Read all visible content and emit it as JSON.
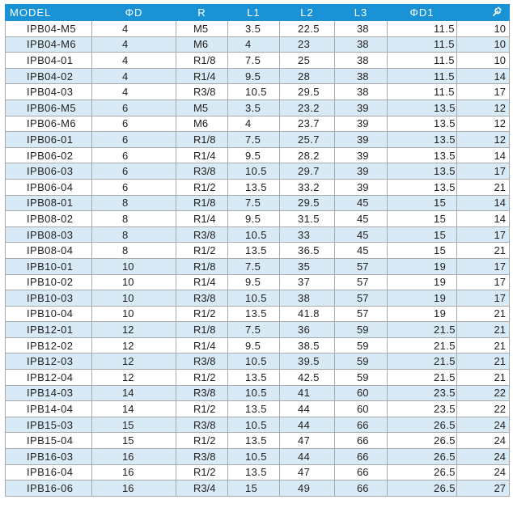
{
  "table": {
    "columns": [
      {
        "key": "model",
        "label": "MODEL"
      },
      {
        "key": "od",
        "label": "ΦD"
      },
      {
        "key": "r",
        "label": "R"
      },
      {
        "key": "l1",
        "label": "L1"
      },
      {
        "key": "l2",
        "label": "L2"
      },
      {
        "key": "l3",
        "label": "L3"
      },
      {
        "key": "od1",
        "label": "ΦD1"
      },
      {
        "key": "hex",
        "label": "",
        "icon": "wrench-icon"
      }
    ],
    "rows": [
      [
        "IPB04-M5",
        "4",
        "M5",
        "3.5",
        "22.5",
        "38",
        "11.5",
        "10"
      ],
      [
        "IPB04-M6",
        "4",
        "M6",
        "4",
        "23",
        "38",
        "11.5",
        "10"
      ],
      [
        "IPB04-01",
        "4",
        "R1/8",
        "7.5",
        "25",
        "38",
        "11.5",
        "10"
      ],
      [
        "IPB04-02",
        "4",
        "R1/4",
        "9.5",
        "28",
        "38",
        "11.5",
        "14"
      ],
      [
        "IPB04-03",
        "4",
        "R3/8",
        "10.5",
        "29.5",
        "38",
        "11.5",
        "17"
      ],
      [
        "IPB06-M5",
        "6",
        "M5",
        "3.5",
        "23.2",
        "39",
        "13.5",
        "12"
      ],
      [
        "IPB06-M6",
        "6",
        "M6",
        "4",
        "23.7",
        "39",
        "13.5",
        "12"
      ],
      [
        "IPB06-01",
        "6",
        "R1/8",
        "7.5",
        "25.7",
        "39",
        "13.5",
        "12"
      ],
      [
        "IPB06-02",
        "6",
        "R1/4",
        "9.5",
        "28.2",
        "39",
        "13.5",
        "14"
      ],
      [
        "IPB06-03",
        "6",
        "R3/8",
        "10.5",
        "29.7",
        "39",
        "13.5",
        "17"
      ],
      [
        "IPB06-04",
        "6",
        "R1/2",
        "13.5",
        "33.2",
        "39",
        "13.5",
        "21"
      ],
      [
        "IPB08-01",
        "8",
        "R1/8",
        "7.5",
        "29.5",
        "45",
        "15",
        "14"
      ],
      [
        "IPB08-02",
        "8",
        "R1/4",
        "9.5",
        "31.5",
        "45",
        "15",
        "14"
      ],
      [
        "IPB08-03",
        "8",
        "R3/8",
        "10.5",
        "33",
        "45",
        "15",
        "17"
      ],
      [
        "IPB08-04",
        "8",
        "R1/2",
        "13.5",
        "36.5",
        "45",
        "15",
        "21"
      ],
      [
        "IPB10-01",
        "10",
        "R1/8",
        "7.5",
        "35",
        "57",
        "19",
        "17"
      ],
      [
        "IPB10-02",
        "10",
        "R1/4",
        "9.5",
        "37",
        "57",
        "19",
        "17"
      ],
      [
        "IPB10-03",
        "10",
        "R3/8",
        "10.5",
        "38",
        "57",
        "19",
        "17"
      ],
      [
        "IPB10-04",
        "10",
        "R1/2",
        "13.5",
        "41.8",
        "57",
        "19",
        "21"
      ],
      [
        "IPB12-01",
        "12",
        "R1/8",
        "7.5",
        "36",
        "59",
        "21.5",
        "21"
      ],
      [
        "IPB12-02",
        "12",
        "R1/4",
        "9.5",
        "38.5",
        "59",
        "21.5",
        "21"
      ],
      [
        "IPB12-03",
        "12",
        "R3/8",
        "10.5",
        "39.5",
        "59",
        "21.5",
        "21"
      ],
      [
        "IPB12-04",
        "12",
        "R1/2",
        "13.5",
        "42.5",
        "59",
        "21.5",
        "21"
      ],
      [
        "IPB14-03",
        "14",
        "R3/8",
        "10.5",
        "41",
        "60",
        "23.5",
        "22"
      ],
      [
        "IPB14-04",
        "14",
        "R1/2",
        "13.5",
        "44",
        "60",
        "23.5",
        "22"
      ],
      [
        "IPB15-03",
        "15",
        "R3/8",
        "10.5",
        "44",
        "66",
        "26.5",
        "24"
      ],
      [
        "IPB15-04",
        "15",
        "R1/2",
        "13.5",
        "47",
        "66",
        "26.5",
        "24"
      ],
      [
        "IPB16-03",
        "16",
        "R3/8",
        "10.5",
        "44",
        "66",
        "26.5",
        "24"
      ],
      [
        "IPB16-04",
        "16",
        "R1/2",
        "13.5",
        "47",
        "66",
        "26.5",
        "24"
      ],
      [
        "IPB16-06",
        "16",
        "R3/4",
        "15",
        "49",
        "66",
        "26.5",
        "27"
      ]
    ]
  },
  "colors": {
    "header_bg": "#1993d6",
    "header_text": "#ffffff",
    "stripe_bg": "#d9eaf7",
    "grid": "#a9a9a9"
  }
}
